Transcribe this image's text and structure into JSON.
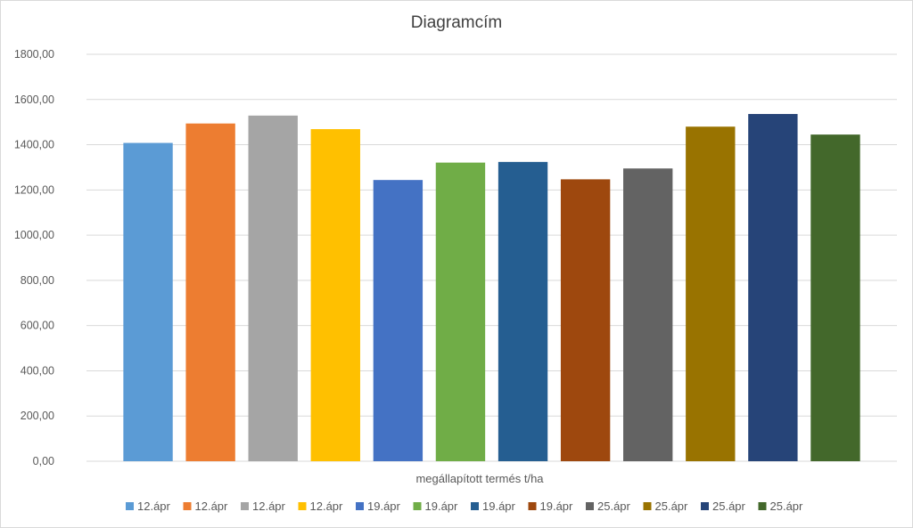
{
  "chart_data": {
    "type": "bar",
    "title": "Diagramcím",
    "xlabel": "megállapított termés t/ha",
    "ylabel": "",
    "ylim": [
      0,
      1800
    ],
    "y_ticks": [
      "0,00",
      "200,00",
      "400,00",
      "600,00",
      "800,00",
      "1000,00",
      "1200,00",
      "1400,00",
      "1600,00",
      "1800,00"
    ],
    "grid": true,
    "legend_position": "bottom",
    "series": [
      {
        "name": "12.ápr",
        "values": [
          1408
        ],
        "color": "#5b9bd5"
      },
      {
        "name": "12.ápr",
        "values": [
          1494
        ],
        "color": "#ed7d31"
      },
      {
        "name": "12.ápr",
        "values": [
          1529
        ],
        "color": "#a5a5a5"
      },
      {
        "name": "12.ápr",
        "values": [
          1469
        ],
        "color": "#ffc000"
      },
      {
        "name": "19.ápr",
        "values": [
          1244
        ],
        "color": "#4472c4"
      },
      {
        "name": "19.ápr",
        "values": [
          1321
        ],
        "color": "#70ad47"
      },
      {
        "name": "19.ápr",
        "values": [
          1324
        ],
        "color": "#255e91"
      },
      {
        "name": "19.ápr",
        "values": [
          1247
        ],
        "color": "#9e480e"
      },
      {
        "name": "25.ápr",
        "values": [
          1295
        ],
        "color": "#636363"
      },
      {
        "name": "25.ápr",
        "values": [
          1480
        ],
        "color": "#997300"
      },
      {
        "name": "25.ápr",
        "values": [
          1536
        ],
        "color": "#264478"
      },
      {
        "name": "25.ápr",
        "values": [
          1445
        ],
        "color": "#43682b"
      }
    ]
  }
}
